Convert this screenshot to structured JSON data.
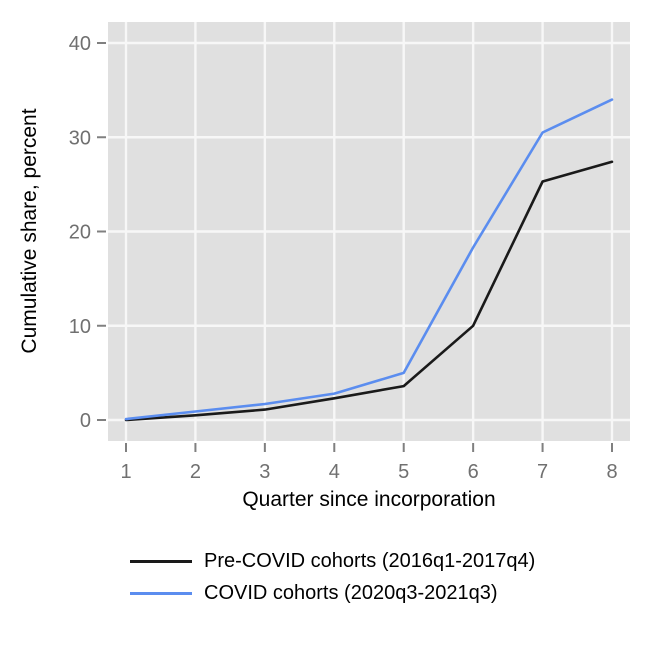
{
  "chart_data": {
    "type": "line",
    "x": [
      1,
      2,
      3,
      4,
      5,
      6,
      7,
      8
    ],
    "x_ticks": [
      1,
      2,
      3,
      4,
      5,
      6,
      7,
      8
    ],
    "y_ticks": [
      0,
      10,
      20,
      30,
      40
    ],
    "xlim": [
      1,
      8
    ],
    "ylim": [
      0,
      40
    ],
    "xlabel": "Quarter since incorporation",
    "ylabel": "Cumulative share, percent",
    "grid": true,
    "legend_position": "bottom-left",
    "series": [
      {
        "name": "Pre-COVID cohorts (2016q1-2017q4)",
        "color": "#1a1a1a",
        "values": [
          0.0,
          0.5,
          1.1,
          2.3,
          3.6,
          10.0,
          25.3,
          27.4
        ]
      },
      {
        "name": "COVID cohorts (2020q3-2021q3)",
        "color": "#5b8def",
        "values": [
          0.1,
          0.9,
          1.7,
          2.8,
          5.0,
          18.3,
          30.5,
          34.0
        ]
      }
    ],
    "colors": {
      "plot_background": "#e0e0e0",
      "gridline": "#f7f7f7",
      "tick": "#808080",
      "tick_label": "#707070",
      "axis_title": "#000000"
    }
  }
}
